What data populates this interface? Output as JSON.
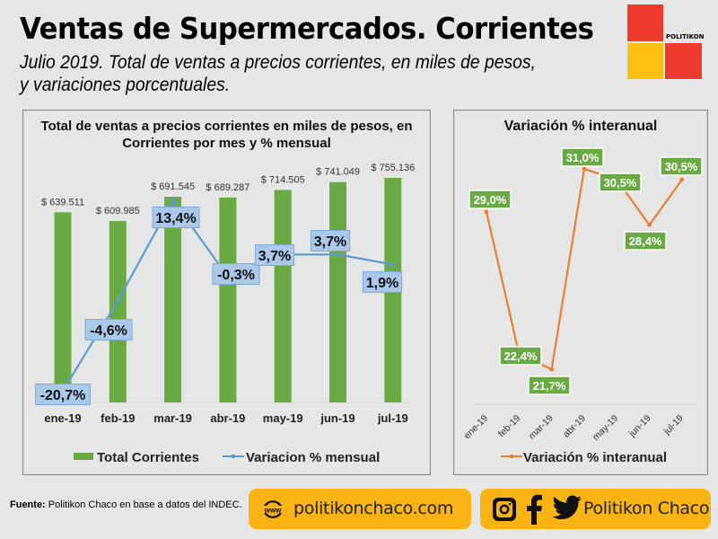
{
  "header": {
    "title": "Ventas de Supermercados. Corrientes",
    "subtitle": "Julio 2019. Total de ventas a precios corrientes, en miles de pesos, y variaciones porcentuales."
  },
  "logo": {
    "text": "POLITIKON",
    "colors": {
      "red": "#ed3a2d",
      "yellow": "#fdc010"
    }
  },
  "chart_data": [
    {
      "type": "bar",
      "title": "Total de ventas a precios corrientes en miles de pesos, en Corrientes por mes y % mensual",
      "categories": [
        "ene-19",
        "feb-19",
        "mar-19",
        "abr-19",
        "may-19",
        "jun-19",
        "jul-19"
      ],
      "series": [
        {
          "name": "Total Corrientes",
          "kind": "bar",
          "color": "#6aaa44",
          "values": [
            639511,
            609985,
            691545,
            689287,
            714505,
            741049,
            755136
          ],
          "labels": [
            "$ 639.511",
            "$ 609.985",
            "$ 691.545",
            "$ 689.287",
            "$ 714.505",
            "$ 741.049",
            "$ 755.136"
          ]
        },
        {
          "name": "Variacion % mensual",
          "kind": "line",
          "color": "#5b9bd5",
          "values": [
            -20.7,
            -4.6,
            13.4,
            -0.3,
            3.7,
            3.7,
            1.9
          ],
          "labels": [
            "-20,7%",
            "-4,6%",
            "13,4%",
            "-0,3%",
            "3,7%",
            "3,7%",
            "1,9%"
          ]
        }
      ],
      "xlabel": "",
      "ylabel": "",
      "grid": false,
      "legend": "bottom"
    },
    {
      "type": "line",
      "title": "Variación % interanual",
      "categories": [
        "ene-19",
        "feb-19",
        "mar-19",
        "abr-19",
        "may-19",
        "jun-19",
        "jul-19"
      ],
      "series": [
        {
          "name": "Variación % interanual",
          "color": "#ed7d31",
          "values": [
            29.0,
            22.4,
            21.7,
            31.0,
            30.5,
            28.4,
            30.5
          ],
          "labels": [
            "29,0%",
            "22,4%",
            "21,7%",
            "31,0%",
            "30,5%",
            "28,4%",
            "30,5%"
          ],
          "label_bg": "#6aaa44"
        }
      ],
      "xlabel": "",
      "ylabel": "",
      "grid": false,
      "legend": "bottom"
    }
  ],
  "footer": {
    "source_label": "Fuente:",
    "source_text": " Politikon Chaco en base a datos del INDEC.",
    "website": "politikonchaco.com",
    "www_icon_text": "www",
    "social_handle": "Politikon Chaco",
    "accent": "#f9b312"
  }
}
